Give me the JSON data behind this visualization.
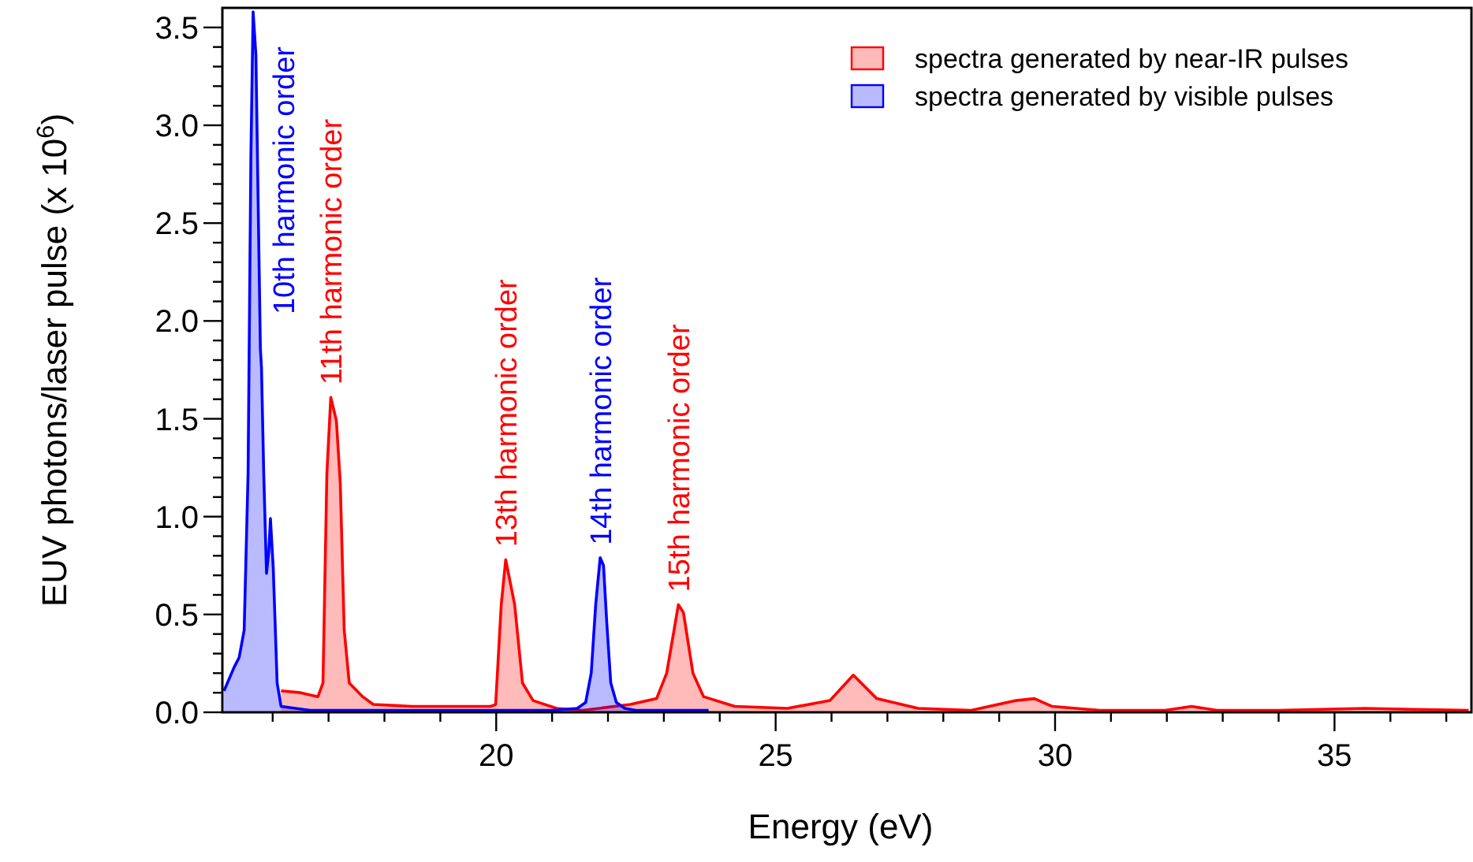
{
  "chart_data": {
    "type": "area",
    "xlabel": "Energy (eV)",
    "ylabel": "EUV photons/laser pulse (x 10$^{6}$)",
    "xlim": [
      15.1,
      37.45
    ],
    "ylim": [
      0,
      3.6
    ],
    "xticks": [
      {
        "value": 16,
        "label": null
      },
      {
        "value": 17,
        "label": null
      },
      {
        "value": 18,
        "label": null
      },
      {
        "value": 19,
        "label": null
      },
      20,
      {
        "value": 21,
        "label": null
      },
      {
        "value": 22,
        "label": null
      },
      {
        "value": 23,
        "label": null
      },
      {
        "value": 24,
        "label": null
      },
      25,
      {
        "value": 26,
        "label": null
      },
      {
        "value": 27,
        "label": null
      },
      {
        "value": 28,
        "label": null
      },
      {
        "value": 29,
        "label": null
      },
      30,
      {
        "value": 31,
        "label": null
      },
      {
        "value": 32,
        "label": null
      },
      {
        "value": 33,
        "label": null
      },
      {
        "value": 34,
        "label": null
      },
      35,
      {
        "value": 36,
        "label": null
      },
      {
        "value": 37,
        "label": null
      }
    ],
    "yticks": [
      {
        "value": 0,
        "label": "0.0"
      },
      {
        "value": 0.1,
        "label": null
      },
      {
        "value": 0.2,
        "label": null
      },
      {
        "value": 0.3,
        "label": null
      },
      {
        "value": 0.4,
        "label": null
      },
      {
        "value": 0.5,
        "label": "0.5"
      },
      {
        "value": 0.6,
        "label": null
      },
      {
        "value": 0.7,
        "label": null
      },
      {
        "value": 0.8,
        "label": null
      },
      {
        "value": 0.9,
        "label": null
      },
      {
        "value": 1,
        "label": "1.0"
      },
      {
        "value": 1.1,
        "label": null
      },
      {
        "value": 1.2,
        "label": null
      },
      {
        "value": 1.3,
        "label": null
      },
      {
        "value": 1.4,
        "label": null
      },
      {
        "value": 1.5,
        "label": "1.5"
      },
      {
        "value": 1.6,
        "label": null
      },
      {
        "value": 1.7,
        "label": null
      },
      {
        "value": 1.8,
        "label": null
      },
      {
        "value": 1.9,
        "label": null
      },
      {
        "value": 2,
        "label": "2.0"
      },
      {
        "value": 2.1,
        "label": null
      },
      {
        "value": 2.2,
        "label": null
      },
      {
        "value": 2.3,
        "label": null
      },
      {
        "value": 2.4,
        "label": null
      },
      {
        "value": 2.5,
        "label": "2.5"
      },
      {
        "value": 2.6,
        "label": null
      },
      {
        "value": 2.7,
        "label": null
      },
      {
        "value": 2.8,
        "label": null
      },
      {
        "value": 2.9,
        "label": null
      },
      {
        "value": 3,
        "label": "3.0"
      },
      {
        "value": 3.1,
        "label": null
      },
      {
        "value": 3.2,
        "label": null
      },
      {
        "value": 3.3,
        "label": null
      },
      {
        "value": 3.4,
        "label": null
      },
      {
        "value": 3.5,
        "label": "3.5"
      }
    ],
    "grid": false,
    "legend": "top right",
    "series": [
      {
        "name": "spectra generated by near-IR pulses",
        "color": "#ff0000",
        "x": [
          16.15,
          16.5,
          16.81,
          16.9,
          16.97,
          17.04,
          17.14,
          17.21,
          17.28,
          17.37,
          17.61,
          17.8,
          18.5,
          19.5,
          19.9,
          19.99,
          20.09,
          20.17,
          20.33,
          20.47,
          20.66,
          21.08,
          21.55,
          22.4,
          22.87,
          23.05,
          23.26,
          23.35,
          23.52,
          23.71,
          24.27,
          25.21,
          25.97,
          26.39,
          26.81,
          27.55,
          28.5,
          29.3,
          29.63,
          29.95,
          30.8,
          31.97,
          32.44,
          32.9,
          34.0,
          35.54,
          37.4
        ],
        "values": [
          0.11,
          0.1,
          0.08,
          0.15,
          1.22,
          1.61,
          1.49,
          1.17,
          0.42,
          0.15,
          0.08,
          0.04,
          0.03,
          0.03,
          0.03,
          0.04,
          0.55,
          0.78,
          0.55,
          0.15,
          0.06,
          0.02,
          0.01,
          0.04,
          0.07,
          0.2,
          0.55,
          0.51,
          0.2,
          0.08,
          0.03,
          0.02,
          0.06,
          0.19,
          0.07,
          0.02,
          0.01,
          0.06,
          0.07,
          0.03,
          0.01,
          0.01,
          0.03,
          0.01,
          0.01,
          0.02,
          0.01
        ]
      },
      {
        "name": "spectra generated by visible pulses",
        "color": "#0000ff",
        "x": [
          15.13,
          15.31,
          15.4,
          15.49,
          15.56,
          15.61,
          15.65,
          15.7,
          15.75,
          15.78,
          15.8,
          15.84,
          15.89,
          15.93,
          15.96,
          16.01,
          16.08,
          16.15,
          16.67,
          18.0,
          19.5,
          21.0,
          21.45,
          21.6,
          21.7,
          21.78,
          21.86,
          21.92,
          21.98,
          22.05,
          22.15,
          22.3,
          22.5,
          23.8
        ],
        "values": [
          0.11,
          0.23,
          0.28,
          0.42,
          1.22,
          2.83,
          3.58,
          3.36,
          2.42,
          1.86,
          1.76,
          1.22,
          0.71,
          0.82,
          0.99,
          0.74,
          0.15,
          0.03,
          0.01,
          0.01,
          0.01,
          0.01,
          0.02,
          0.05,
          0.2,
          0.55,
          0.79,
          0.75,
          0.45,
          0.15,
          0.05,
          0.02,
          0.01,
          0.01
        ]
      }
    ],
    "annotations": [
      {
        "text": "10th harmonic order",
        "x": 15.65,
        "y": 3.58
      },
      {
        "text": "11th harmonic order",
        "x": 17.04,
        "y": 1.61
      },
      {
        "text": "13th harmonic order",
        "x": 20.17,
        "y": 0.78
      },
      {
        "text": "14th harmonic order",
        "x": 21.86,
        "y": 0.79
      },
      {
        "text": "15th harmonic order",
        "x": 23.26,
        "y": 0.55
      }
    ]
  }
}
